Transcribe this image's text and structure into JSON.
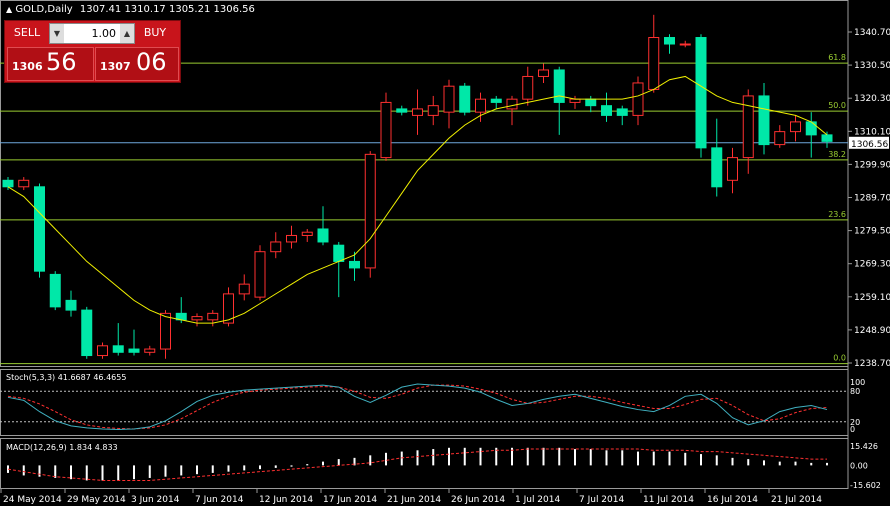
{
  "header": {
    "triangle": "▲",
    "symbol": "GOLD,Daily",
    "ohlc": "1307.41 1310.17 1305.21 1306.56"
  },
  "trade_panel": {
    "sell_label": "SELL",
    "buy_label": "BUY",
    "lot_value": "1.00",
    "sell_price_small": "1306",
    "sell_price_big": "56",
    "buy_price_small": "1307",
    "buy_price_big": "06"
  },
  "price_axis": [
    "1340.70",
    "1330.50",
    "1320.30",
    "1310.10",
    "1299.90",
    "1289.70",
    "1279.50",
    "1269.30",
    "1259.10",
    "1248.90",
    "1238.70"
  ],
  "current_price": "1306.56",
  "fib_levels": [
    {
      "label": "61.8",
      "price": 1331.1
    },
    {
      "label": "50.0",
      "price": 1316.3
    },
    {
      "label": "38.2",
      "price": 1301.3
    },
    {
      "label": "23.6",
      "price": 1282.8
    },
    {
      "label": "0.0",
      "price": 1238.5
    }
  ],
  "stoch": {
    "label": "Stoch(5,3,3) 41.6687 46.4655",
    "axis": [
      "100",
      "80",
      "20",
      "0"
    ]
  },
  "macd": {
    "label": "MACD(12,26,9) 1.834 4.833",
    "axis": [
      "15.426",
      "0.00",
      "-15.602"
    ]
  },
  "date_axis": [
    "24 May 2014",
    "29 May 2014",
    "3 Jun 2014",
    "7 Jun 2014",
    "12 Jun 2014",
    "17 Jun 2014",
    "21 Jun 2014",
    "26 Jun 2014",
    "1 Jul 2014",
    "7 Jul 2014",
    "11 Jul 2014",
    "16 Jul 2014",
    "21 Jul 2014"
  ],
  "colors": {
    "bull": "#ff3030",
    "bear": "#00e8a8",
    "ma": "#f0f000",
    "fib": "#9acd32",
    "stoch_main": "#40b0c0",
    "stoch_signal": "#ff3030",
    "macd_hist": "#ffffff",
    "macd_signal": "#ff3030",
    "grid": "#c0c0c0"
  },
  "chart_data": {
    "type": "candlestick",
    "candles": [
      {
        "o": 1295,
        "h": 1296,
        "l": 1292,
        "c": 1293
      },
      {
        "o": 1293,
        "h": 1296,
        "l": 1292,
        "c": 1295
      },
      {
        "o": 1293,
        "h": 1294,
        "l": 1265,
        "c": 1267
      },
      {
        "o": 1266,
        "h": 1267,
        "l": 1255,
        "c": 1256
      },
      {
        "o": 1258,
        "h": 1261,
        "l": 1253,
        "c": 1255
      },
      {
        "o": 1255,
        "h": 1256,
        "l": 1240,
        "c": 1241
      },
      {
        "o": 1241,
        "h": 1245,
        "l": 1240,
        "c": 1244
      },
      {
        "o": 1244,
        "h": 1251,
        "l": 1241,
        "c": 1242
      },
      {
        "o": 1243,
        "h": 1249,
        "l": 1241,
        "c": 1242
      },
      {
        "o": 1242,
        "h": 1244,
        "l": 1241,
        "c": 1243
      },
      {
        "o": 1243,
        "h": 1255,
        "l": 1240,
        "c": 1254
      },
      {
        "o": 1254,
        "h": 1259,
        "l": 1251,
        "c": 1252
      },
      {
        "o": 1252,
        "h": 1254,
        "l": 1250,
        "c": 1253
      },
      {
        "o": 1252,
        "h": 1255,
        "l": 1250,
        "c": 1254
      },
      {
        "o": 1251,
        "h": 1262,
        "l": 1250,
        "c": 1260
      },
      {
        "o": 1260,
        "h": 1266,
        "l": 1258,
        "c": 1263
      },
      {
        "o": 1259,
        "h": 1275,
        "l": 1258,
        "c": 1273
      },
      {
        "o": 1273,
        "h": 1279,
        "l": 1271,
        "c": 1276
      },
      {
        "o": 1276,
        "h": 1281,
        "l": 1274,
        "c": 1278
      },
      {
        "o": 1278,
        "h": 1280,
        "l": 1276,
        "c": 1279
      },
      {
        "o": 1280,
        "h": 1287,
        "l": 1275,
        "c": 1276
      },
      {
        "o": 1275,
        "h": 1276,
        "l": 1259,
        "c": 1270
      },
      {
        "o": 1270,
        "h": 1273,
        "l": 1264,
        "c": 1268
      },
      {
        "o": 1268,
        "h": 1304,
        "l": 1265,
        "c": 1303
      },
      {
        "o": 1302,
        "h": 1322,
        "l": 1301,
        "c": 1319
      },
      {
        "o": 1317,
        "h": 1318,
        "l": 1315,
        "c": 1316
      },
      {
        "o": 1315,
        "h": 1323,
        "l": 1309,
        "c": 1317
      },
      {
        "o": 1315,
        "h": 1321,
        "l": 1312,
        "c": 1318
      },
      {
        "o": 1316,
        "h": 1326,
        "l": 1311,
        "c": 1324
      },
      {
        "o": 1324,
        "h": 1325,
        "l": 1315,
        "c": 1316
      },
      {
        "o": 1316,
        "h": 1322,
        "l": 1313,
        "c": 1320
      },
      {
        "o": 1320,
        "h": 1321,
        "l": 1317,
        "c": 1319
      },
      {
        "o": 1317,
        "h": 1321,
        "l": 1312,
        "c": 1320
      },
      {
        "o": 1320,
        "h": 1330,
        "l": 1318,
        "c": 1327
      },
      {
        "o": 1327,
        "h": 1331,
        "l": 1325,
        "c": 1329
      },
      {
        "o": 1329,
        "h": 1330,
        "l": 1309,
        "c": 1319
      },
      {
        "o": 1319,
        "h": 1321,
        "l": 1317,
        "c": 1320
      },
      {
        "o": 1320,
        "h": 1321,
        "l": 1316,
        "c": 1318
      },
      {
        "o": 1318,
        "h": 1322,
        "l": 1313,
        "c": 1315
      },
      {
        "o": 1317,
        "h": 1318,
        "l": 1312,
        "c": 1315
      },
      {
        "o": 1315,
        "h": 1327,
        "l": 1312,
        "c": 1325
      },
      {
        "o": 1323,
        "h": 1346,
        "l": 1322,
        "c": 1339
      },
      {
        "o": 1339,
        "h": 1340,
        "l": 1334,
        "c": 1337
      },
      {
        "o": 1337,
        "h": 1338,
        "l": 1336,
        "c": 1337
      },
      {
        "o": 1339,
        "h": 1340,
        "l": 1302,
        "c": 1305
      },
      {
        "o": 1305,
        "h": 1314,
        "l": 1290,
        "c": 1293
      },
      {
        "o": 1295,
        "h": 1305,
        "l": 1291,
        "c": 1302
      },
      {
        "o": 1302,
        "h": 1323,
        "l": 1297,
        "c": 1321
      },
      {
        "o": 1321,
        "h": 1325,
        "l": 1303,
        "c": 1306
      },
      {
        "o": 1306,
        "h": 1312,
        "l": 1305,
        "c": 1310
      },
      {
        "o": 1310,
        "h": 1315,
        "l": 1307,
        "c": 1313
      },
      {
        "o": 1313,
        "h": 1316,
        "l": 1302,
        "c": 1309
      },
      {
        "o": 1309,
        "h": 1310,
        "l": 1305,
        "c": 1307
      }
    ],
    "ma": [
      1293,
      1290,
      1285,
      1280,
      1275,
      1270,
      1266,
      1262,
      1258,
      1255,
      1253,
      1252,
      1251,
      1251,
      1252,
      1254,
      1257,
      1260,
      1263,
      1266,
      1268,
      1270,
      1272,
      1277,
      1284,
      1291,
      1298,
      1303,
      1308,
      1312,
      1315,
      1317,
      1318,
      1319,
      1320,
      1321,
      1320,
      1320,
      1320,
      1320,
      1321,
      1323,
      1326,
      1327,
      1324,
      1321,
      1319,
      1318,
      1317,
      1316,
      1315,
      1313,
      1309
    ],
    "stoch_main": [
      68,
      62,
      40,
      22,
      12,
      8,
      6,
      5,
      6,
      10,
      22,
      40,
      60,
      72,
      78,
      82,
      84,
      86,
      88,
      90,
      92,
      88,
      70,
      58,
      72,
      88,
      94,
      92,
      90,
      86,
      78,
      64,
      52,
      56,
      64,
      70,
      74,
      66,
      58,
      50,
      44,
      40,
      52,
      70,
      74,
      56,
      28,
      14,
      22,
      40,
      48,
      52,
      44
    ],
    "stoch_signal": [
      70,
      66,
      55,
      40,
      24,
      14,
      9,
      7,
      6,
      8,
      14,
      26,
      42,
      58,
      70,
      78,
      82,
      84,
      86,
      88,
      89,
      88,
      80,
      68,
      66,
      74,
      86,
      92,
      92,
      90,
      84,
      76,
      64,
      56,
      58,
      64,
      70,
      70,
      66,
      58,
      52,
      46,
      46,
      54,
      64,
      66,
      52,
      34,
      22,
      26,
      38,
      46,
      48
    ],
    "macd_hist": [
      -6,
      -8,
      -9,
      -10,
      -11,
      -12,
      -12,
      -12,
      -11,
      -10,
      -9,
      -8,
      -7,
      -6,
      -5,
      -4,
      -3,
      -2,
      -1,
      1,
      3,
      5,
      6,
      8,
      10,
      11,
      12,
      13,
      14,
      14,
      14,
      14,
      14,
      14,
      14,
      14,
      13,
      13,
      12,
      12,
      11,
      11,
      11,
      10,
      9,
      8,
      6,
      5,
      4,
      3,
      3,
      2,
      2
    ],
    "macd_signal": [
      -3,
      -5,
      -7,
      -9,
      -10,
      -11,
      -12,
      -12,
      -12,
      -12,
      -11,
      -10,
      -9,
      -8,
      -7,
      -6,
      -5,
      -4,
      -3,
      -2,
      -1,
      0,
      1,
      2,
      4,
      6,
      7,
      8,
      9,
      10,
      11,
      12,
      12,
      13,
      13,
      13,
      13,
      13,
      13,
      13,
      13,
      12,
      12,
      12,
      11,
      11,
      10,
      9,
      8,
      7,
      6,
      5,
      5
    ]
  }
}
